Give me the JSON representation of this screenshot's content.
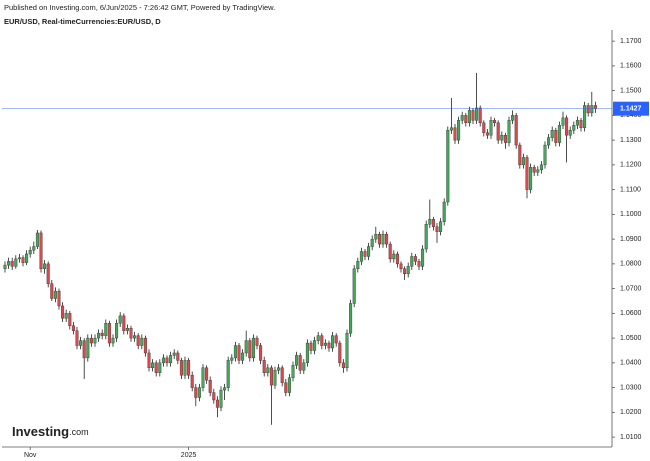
{
  "header": {
    "published": "Published on Investing.com, 6/Jun/2025 - 7:26:42 GMT, Powered by TradingView.",
    "symbol": "EUR/USD, Real-timeCurrencies:EUR/USD, D"
  },
  "logo": {
    "main": "Investing",
    "suffix": ".com"
  },
  "chart_data": {
    "type": "candlestick",
    "up_color": "#43a85a",
    "down_color": "#e0474c",
    "ylim": [
      1.006,
      1.1745
    ],
    "yticks": [
      {
        "value": 1.01,
        "label": "1.0100"
      },
      {
        "value": 1.02,
        "label": "1.0200"
      },
      {
        "value": 1.03,
        "label": "1.0300"
      },
      {
        "value": 1.04,
        "label": "1.0400"
      },
      {
        "value": 1.05,
        "label": "1.0500"
      },
      {
        "value": 1.06,
        "label": "1.0600"
      },
      {
        "value": 1.07,
        "label": "1.0700"
      },
      {
        "value": 1.08,
        "label": "1.0800"
      },
      {
        "value": 1.09,
        "label": "1.0900"
      },
      {
        "value": 1.1,
        "label": "1.1000"
      },
      {
        "value": 1.11,
        "label": "1.1100"
      },
      {
        "value": 1.12,
        "label": "1.1200"
      },
      {
        "value": 1.13,
        "label": "1.1300"
      },
      {
        "value": 1.14,
        "label": "1.1400"
      },
      {
        "value": 1.15,
        "label": "1.1500"
      },
      {
        "value": 1.16,
        "label": "1.1600"
      },
      {
        "value": 1.17,
        "label": "1.1700"
      }
    ],
    "last_price": 1.1427,
    "last_price_color": "#2962ff",
    "categories": [
      null,
      null,
      null,
      null,
      null,
      null,
      null,
      "Nov",
      null,
      null,
      null,
      null,
      null,
      null,
      null,
      null,
      null,
      null,
      null,
      null,
      null,
      null,
      null,
      null,
      null,
      null,
      null,
      null,
      null,
      null,
      null,
      null,
      null,
      null,
      null,
      null,
      null,
      null,
      null,
      null,
      null,
      null,
      null,
      null,
      null,
      null,
      null,
      null,
      null,
      null,
      null,
      "2025",
      null,
      null,
      null,
      null,
      null,
      null,
      null,
      null,
      null,
      null,
      null,
      null,
      null,
      null,
      null,
      null,
      null,
      null,
      null,
      null,
      null,
      null,
      null,
      null,
      null,
      null,
      null,
      null,
      null,
      null,
      null,
      null,
      null,
      null,
      null,
      null,
      null,
      null,
      null,
      null,
      null,
      null,
      null,
      null,
      null,
      null,
      null,
      null,
      null,
      null,
      null,
      null,
      null,
      null,
      null,
      null,
      null,
      null,
      null,
      null,
      null,
      null,
      null,
      null,
      null,
      null,
      null,
      null,
      null,
      null,
      null,
      null,
      null,
      null,
      null,
      null,
      null,
      null,
      null,
      null,
      null,
      null,
      null,
      null,
      null,
      null,
      null,
      null,
      null,
      null,
      null,
      null,
      null,
      null,
      null,
      null,
      null,
      null,
      null,
      null,
      null,
      null,
      null,
      null,
      null,
      null,
      null,
      null,
      null,
      null,
      null,
      null,
      null
    ],
    "ohlc": [
      [
        1.078,
        1.081,
        1.0765,
        1.0795
      ],
      [
        1.0795,
        1.0825,
        1.078,
        1.081
      ],
      [
        1.081,
        1.0825,
        1.0775,
        1.079
      ],
      [
        1.079,
        1.0835,
        1.078,
        1.082
      ],
      [
        1.082,
        1.084,
        1.0805,
        1.0825
      ],
      [
        1.0825,
        1.0835,
        1.079,
        1.0805
      ],
      [
        1.0805,
        1.0855,
        1.0795,
        1.084
      ],
      [
        1.084,
        1.087,
        1.0825,
        1.0855
      ],
      [
        1.0855,
        1.089,
        1.084,
        1.087
      ],
      [
        1.087,
        1.0937,
        1.086,
        1.0925
      ],
      [
        1.0925,
        1.0935,
        1.0765,
        1.078
      ],
      [
        1.078,
        1.0815,
        1.076,
        1.08
      ],
      [
        1.08,
        1.081,
        1.0705,
        1.072
      ],
      [
        1.072,
        1.0735,
        1.065,
        1.066
      ],
      [
        1.066,
        1.0705,
        1.0645,
        1.069
      ],
      [
        1.069,
        1.07,
        1.0615,
        1.063
      ],
      [
        1.063,
        1.0645,
        1.0565,
        1.058
      ],
      [
        1.058,
        1.0615,
        1.0565,
        1.06
      ],
      [
        1.06,
        1.061,
        1.0535,
        1.055
      ],
      [
        1.055,
        1.0565,
        1.0515,
        1.053
      ],
      [
        1.053,
        1.0545,
        1.0455,
        1.047
      ],
      [
        1.047,
        1.0505,
        1.0455,
        1.049
      ],
      [
        1.049,
        1.05,
        1.0335,
        1.042
      ],
      [
        1.042,
        1.0515,
        1.0405,
        1.05
      ],
      [
        1.05,
        1.0515,
        1.0465,
        1.048
      ],
      [
        1.048,
        1.0515,
        1.0465,
        1.05
      ],
      [
        1.05,
        1.0535,
        1.0485,
        1.052
      ],
      [
        1.052,
        1.0535,
        1.0495,
        1.051
      ],
      [
        1.051,
        1.0575,
        1.0495,
        1.056
      ],
      [
        1.056,
        1.057,
        1.0465,
        1.048
      ],
      [
        1.048,
        1.0515,
        1.0465,
        1.05
      ],
      [
        1.05,
        1.0575,
        1.0485,
        1.056
      ],
      [
        1.056,
        1.0605,
        1.0545,
        1.059
      ],
      [
        1.059,
        1.06,
        1.0515,
        1.053
      ],
      [
        1.053,
        1.0555,
        1.0515,
        1.054
      ],
      [
        1.054,
        1.055,
        1.0485,
        1.05
      ],
      [
        1.05,
        1.0525,
        1.0485,
        1.051
      ],
      [
        1.051,
        1.052,
        1.0455,
        1.047
      ],
      [
        1.047,
        1.0515,
        1.0455,
        1.05
      ],
      [
        1.05,
        1.051,
        1.0425,
        1.044
      ],
      [
        1.044,
        1.0455,
        1.0365,
        1.038
      ],
      [
        1.038,
        1.0415,
        1.0365,
        1.04
      ],
      [
        1.04,
        1.041,
        1.0345,
        1.036
      ],
      [
        1.036,
        1.0415,
        1.0345,
        1.04
      ],
      [
        1.04,
        1.0435,
        1.0385,
        1.042
      ],
      [
        1.042,
        1.043,
        1.0385,
        1.04
      ],
      [
        1.04,
        1.0445,
        1.0385,
        1.043
      ],
      [
        1.043,
        1.0455,
        1.0415,
        1.044
      ],
      [
        1.044,
        1.045,
        1.0395,
        1.041
      ],
      [
        1.041,
        1.042,
        1.0335,
        1.035
      ],
      [
        1.035,
        1.0425,
        1.0335,
        1.041
      ],
      [
        1.041,
        1.042,
        1.0335,
        1.035
      ],
      [
        1.035,
        1.0365,
        1.0285,
        1.03
      ],
      [
        1.03,
        1.0315,
        1.0225,
        1.026
      ],
      [
        1.026,
        1.0315,
        1.0245,
        1.03
      ],
      [
        1.03,
        1.0395,
        1.0285,
        1.038
      ],
      [
        1.038,
        1.039,
        1.0315,
        1.033
      ],
      [
        1.033,
        1.0345,
        1.0265,
        1.028
      ],
      [
        1.028,
        1.0295,
        1.0235,
        1.025
      ],
      [
        1.025,
        1.0265,
        1.018,
        1.022
      ],
      [
        1.022,
        1.0305,
        1.0205,
        1.029
      ],
      [
        1.029,
        1.0315,
        1.025,
        1.03
      ],
      [
        1.03,
        1.0425,
        1.0285,
        1.041
      ],
      [
        1.041,
        1.0435,
        1.0395,
        1.042
      ],
      [
        1.042,
        1.0485,
        1.0405,
        1.047
      ],
      [
        1.047,
        1.048,
        1.0395,
        1.041
      ],
      [
        1.041,
        1.0455,
        1.0395,
        1.044
      ],
      [
        1.044,
        1.053,
        1.0425,
        1.049
      ],
      [
        1.049,
        1.05,
        1.0405,
        1.042
      ],
      [
        1.042,
        1.0515,
        1.0405,
        1.05
      ],
      [
        1.05,
        1.051,
        1.0455,
        1.047
      ],
      [
        1.047,
        1.048,
        1.0395,
        1.041
      ],
      [
        1.041,
        1.0425,
        1.0345,
        1.036
      ],
      [
        1.036,
        1.0395,
        1.0345,
        1.038
      ],
      [
        1.038,
        1.039,
        1.015,
        1.031
      ],
      [
        1.031,
        1.0385,
        1.0295,
        1.037
      ],
      [
        1.037,
        1.0395,
        1.0355,
        1.038
      ],
      [
        1.038,
        1.039,
        1.0305,
        1.032
      ],
      [
        1.032,
        1.0335,
        1.0265,
        1.028
      ],
      [
        1.028,
        1.0355,
        1.0265,
        1.034
      ],
      [
        1.034,
        1.0405,
        1.0325,
        1.039
      ],
      [
        1.039,
        1.0445,
        1.0375,
        1.043
      ],
      [
        1.043,
        1.044,
        1.0355,
        1.037
      ],
      [
        1.037,
        1.0415,
        1.0355,
        1.04
      ],
      [
        1.04,
        1.0495,
        1.0385,
        1.048
      ],
      [
        1.048,
        1.049,
        1.0435,
        1.045
      ],
      [
        1.045,
        1.0505,
        1.0435,
        1.049
      ],
      [
        1.049,
        1.0525,
        1.0475,
        1.051
      ],
      [
        1.051,
        1.052,
        1.0455,
        1.047
      ],
      [
        1.047,
        1.0495,
        1.0455,
        1.048
      ],
      [
        1.048,
        1.049,
        1.0445,
        1.046
      ],
      [
        1.046,
        1.0525,
        1.0445,
        1.051
      ],
      [
        1.051,
        1.052,
        1.0465,
        1.048
      ],
      [
        1.048,
        1.049,
        1.0385,
        1.04
      ],
      [
        1.04,
        1.0415,
        1.036,
        1.038
      ],
      [
        1.038,
        1.0535,
        1.0365,
        1.052
      ],
      [
        1.052,
        1.0655,
        1.0505,
        1.064
      ],
      [
        1.064,
        1.0795,
        1.0625,
        1.078
      ],
      [
        1.078,
        1.0825,
        1.0765,
        1.081
      ],
      [
        1.081,
        1.0865,
        1.0795,
        1.085
      ],
      [
        1.085,
        1.086,
        1.0815,
        1.083
      ],
      [
        1.083,
        1.0885,
        1.0815,
        1.087
      ],
      [
        1.087,
        1.0915,
        1.0855,
        1.09
      ],
      [
        1.09,
        1.095,
        1.0885,
        1.092
      ],
      [
        1.092,
        1.093,
        1.0865,
        1.088
      ],
      [
        1.088,
        1.0935,
        1.0865,
        1.092
      ],
      [
        1.092,
        1.093,
        1.0865,
        1.088
      ],
      [
        1.088,
        1.089,
        1.0805,
        1.082
      ],
      [
        1.082,
        1.0855,
        1.0805,
        1.084
      ],
      [
        1.084,
        1.085,
        1.0785,
        1.08
      ],
      [
        1.08,
        1.081,
        1.0765,
        1.078
      ],
      [
        1.078,
        1.079,
        1.0735,
        1.076
      ],
      [
        1.076,
        1.0805,
        1.0745,
        1.079
      ],
      [
        1.079,
        1.0845,
        1.0775,
        1.083
      ],
      [
        1.083,
        1.084,
        1.0795,
        1.081
      ],
      [
        1.081,
        1.082,
        1.0775,
        1.079
      ],
      [
        1.079,
        1.0875,
        1.0775,
        1.086
      ],
      [
        1.086,
        1.0975,
        1.0845,
        1.096
      ],
      [
        1.096,
        1.106,
        1.0945,
        1.098
      ],
      [
        1.098,
        1.099,
        1.0935,
        1.095
      ],
      [
        1.095,
        1.0965,
        1.0885,
        1.093
      ],
      [
        1.093,
        1.0985,
        1.0915,
        1.097
      ],
      [
        1.097,
        1.1065,
        1.0955,
        1.105
      ],
      [
        1.105,
        1.1355,
        1.1035,
        1.134
      ],
      [
        1.134,
        1.147,
        1.1325,
        1.135
      ],
      [
        1.135,
        1.1365,
        1.1285,
        1.13
      ],
      [
        1.13,
        1.1395,
        1.1285,
        1.138
      ],
      [
        1.138,
        1.1415,
        1.1365,
        1.14
      ],
      [
        1.14,
        1.141,
        1.1355,
        1.137
      ],
      [
        1.137,
        1.1435,
        1.1355,
        1.142
      ],
      [
        1.142,
        1.143,
        1.1365,
        1.138
      ],
      [
        1.138,
        1.1572,
        1.1365,
        1.143
      ],
      [
        1.143,
        1.144,
        1.1355,
        1.137
      ],
      [
        1.137,
        1.138,
        1.1315,
        1.133
      ],
      [
        1.133,
        1.1345,
        1.1305,
        1.132
      ],
      [
        1.132,
        1.1395,
        1.1305,
        1.138
      ],
      [
        1.138,
        1.139,
        1.1355,
        1.137
      ],
      [
        1.137,
        1.138,
        1.1285,
        1.13
      ],
      [
        1.13,
        1.1335,
        1.1285,
        1.132
      ],
      [
        1.132,
        1.133,
        1.1265,
        1.129
      ],
      [
        1.129,
        1.1395,
        1.1275,
        1.138
      ],
      [
        1.138,
        1.142,
        1.1365,
        1.14
      ],
      [
        1.14,
        1.141,
        1.1265,
        1.128
      ],
      [
        1.128,
        1.129,
        1.1185,
        1.12
      ],
      [
        1.12,
        1.1245,
        1.1185,
        1.123
      ],
      [
        1.123,
        1.124,
        1.1065,
        1.11
      ],
      [
        1.11,
        1.1205,
        1.1085,
        1.119
      ],
      [
        1.119,
        1.12,
        1.1155,
        1.117
      ],
      [
        1.117,
        1.1195,
        1.1155,
        1.118
      ],
      [
        1.118,
        1.1215,
        1.1165,
        1.12
      ],
      [
        1.12,
        1.1295,
        1.1185,
        1.128
      ],
      [
        1.128,
        1.1325,
        1.1265,
        1.131
      ],
      [
        1.131,
        1.1355,
        1.1295,
        1.134
      ],
      [
        1.134,
        1.135,
        1.1275,
        1.129
      ],
      [
        1.129,
        1.1375,
        1.1275,
        1.136
      ],
      [
        1.136,
        1.1415,
        1.1345,
        1.139
      ],
      [
        1.139,
        1.14,
        1.121,
        1.132
      ],
      [
        1.132,
        1.1355,
        1.1305,
        1.134
      ],
      [
        1.134,
        1.1375,
        1.1325,
        1.136
      ],
      [
        1.136,
        1.1395,
        1.1345,
        1.138
      ],
      [
        1.138,
        1.139,
        1.1335,
        1.135
      ],
      [
        1.135,
        1.1455,
        1.1335,
        1.144
      ],
      [
        1.144,
        1.145,
        1.1395,
        1.141
      ],
      [
        1.141,
        1.1495,
        1.1395,
        1.144
      ],
      [
        1.144,
        1.1455,
        1.141,
        1.1427
      ]
    ]
  }
}
